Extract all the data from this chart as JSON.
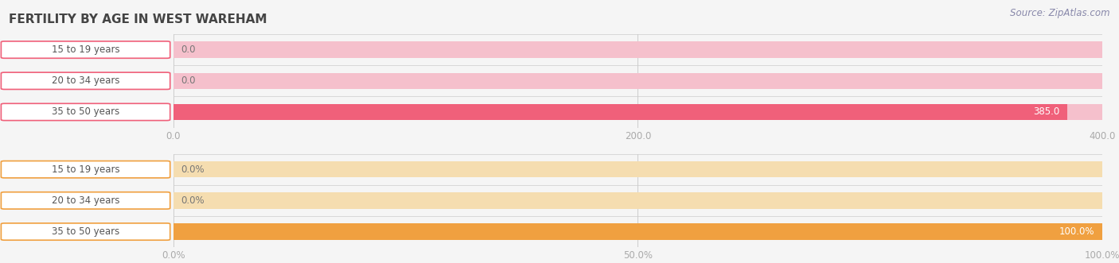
{
  "title": "FERTILITY BY AGE IN WEST WAREHAM",
  "source_text": "Source: ZipAtlas.com",
  "top_chart": {
    "categories": [
      "15 to 19 years",
      "20 to 34 years",
      "35 to 50 years"
    ],
    "values": [
      0.0,
      0.0,
      385.0
    ],
    "xlim": [
      0.0,
      400.0
    ],
    "xticks": [
      0.0,
      200.0,
      400.0
    ],
    "bar_color_full": "#f0607a",
    "bar_color_empty": "#f5c0cc",
    "value_labels": [
      "0.0",
      "0.0",
      "385.0"
    ],
    "label_color_inside": "#ffffff",
    "label_color_outside": "#888888"
  },
  "bottom_chart": {
    "categories": [
      "15 to 19 years",
      "20 to 34 years",
      "35 to 50 years"
    ],
    "values": [
      0.0,
      0.0,
      100.0
    ],
    "xlim": [
      0.0,
      100.0
    ],
    "xticks": [
      0.0,
      50.0,
      100.0
    ],
    "xtick_labels": [
      "0.0%",
      "50.0%",
      "100.0%"
    ],
    "bar_color_full": "#f0a040",
    "bar_color_empty": "#f5ddb0",
    "value_labels": [
      "0.0%",
      "0.0%",
      "100.0%"
    ],
    "label_color_inside": "#ffffff",
    "label_color_outside": "#888888"
  },
  "bg_color": "#f5f5f5",
  "label_box_bg": "#ffffff",
  "label_box_border_top": "#f0607a",
  "label_box_border_bottom": "#f0a040",
  "title_fontsize": 11,
  "bar_height": 0.52,
  "label_fontsize": 8.5,
  "axis_fontsize": 8.5,
  "source_fontsize": 8.5,
  "cat_label_fontsize": 8.5
}
